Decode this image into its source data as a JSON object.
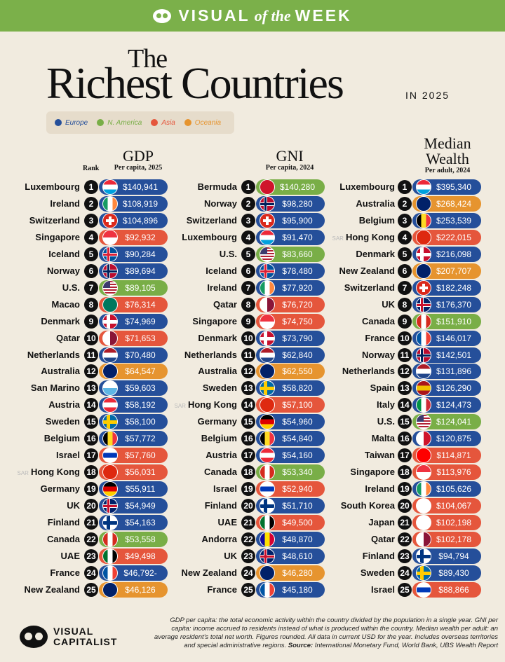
{
  "banner": {
    "pre": "VISUAL",
    "mid": "of the",
    "post": "WEEK"
  },
  "title": {
    "line1": "The",
    "line2": "Richest Countries",
    "year": "IN 2025"
  },
  "colors": {
    "Europe": "#254f9a",
    "N. America": "#79ae47",
    "Asia": "#e5563c",
    "Oceania": "#e6942f"
  },
  "legend": [
    {
      "label": "Europe",
      "region": "Europe"
    },
    {
      "label": "N. America",
      "region": "N. America"
    },
    {
      "label": "Asia",
      "region": "Asia"
    },
    {
      "label": "Oceania",
      "region": "Oceania"
    }
  ],
  "columns": [
    {
      "title": "GDP",
      "subtitle": "Per capita, 2025",
      "rank_label": "Rank",
      "rows": [
        [
          "Luxembourg",
          "$140,941",
          "Europe",
          "lu"
        ],
        [
          "Ireland",
          "$108,919",
          "Europe",
          "ie"
        ],
        [
          "Switzerland",
          "$104,896",
          "Europe",
          "ch"
        ],
        [
          "Singapore",
          "$92,932",
          "Asia",
          "sg"
        ],
        [
          "Iceland",
          "$90,284",
          "Europe",
          "is"
        ],
        [
          "Norway",
          "$89,694",
          "Europe",
          "no"
        ],
        [
          "U.S.",
          "$89,105",
          "N. America",
          "us"
        ],
        [
          "Macao",
          "$76,314",
          "Asia",
          "mo"
        ],
        [
          "Denmark",
          "$74,969",
          "Europe",
          "dk"
        ],
        [
          "Qatar",
          "$71,653",
          "Asia",
          "qa"
        ],
        [
          "Netherlands",
          "$70,480",
          "Europe",
          "nl"
        ],
        [
          "Australia",
          "$64,547",
          "Oceania",
          "au"
        ],
        [
          "San Marino",
          "$59,603",
          "Europe",
          "sm"
        ],
        [
          "Austria",
          "$58,192",
          "Europe",
          "at"
        ],
        [
          "Sweden",
          "$58,100",
          "Europe",
          "se"
        ],
        [
          "Belgium",
          "$57,772",
          "Europe",
          "be"
        ],
        [
          "Israel",
          "$57,760",
          "Asia",
          "il"
        ],
        [
          "Hong Kong",
          "$56,031",
          "Asia",
          "hk"
        ],
        [
          "Germany",
          "$55,911",
          "Europe",
          "de"
        ],
        [
          "UK",
          "$54,949",
          "Europe",
          "uk"
        ],
        [
          "Finland",
          "$54,163",
          "Europe",
          "fi"
        ],
        [
          "Canada",
          "$53,558",
          "N. America",
          "ca"
        ],
        [
          "UAE",
          "$49,498",
          "Asia",
          "ae"
        ],
        [
          "France",
          "$46,792-",
          "Europe",
          "fr"
        ],
        [
          "New Zealand",
          "$46,126",
          "Oceania",
          "nz"
        ]
      ]
    },
    {
      "title": "GNI",
      "subtitle": "Per capita, 2024",
      "rows": [
        [
          "Bermuda",
          "$140,280",
          "N. America",
          "bm"
        ],
        [
          "Norway",
          "$98,280",
          "Europe",
          "no"
        ],
        [
          "Switzerland",
          "$95,900",
          "Europe",
          "ch"
        ],
        [
          "Luxembourg",
          "$91,470",
          "Europe",
          "lu"
        ],
        [
          "U.S.",
          "$83,660",
          "N. America",
          "us"
        ],
        [
          "Iceland",
          "$78,480",
          "Europe",
          "is"
        ],
        [
          "Ireland",
          "$77,920",
          "Europe",
          "ie"
        ],
        [
          "Qatar",
          "$76,720",
          "Asia",
          "qa"
        ],
        [
          "Singapore",
          "$74,750",
          "Asia",
          "sg"
        ],
        [
          "Denmark",
          "$73,790",
          "Europe",
          "dk"
        ],
        [
          "Netherlands",
          "$62,840",
          "Europe",
          "nl"
        ],
        [
          "Australia",
          "$62,550",
          "Oceania",
          "au"
        ],
        [
          "Sweden",
          "$58,820",
          "Europe",
          "se"
        ],
        [
          "Hong Kong",
          "$57,100",
          "Asia",
          "hk"
        ],
        [
          "Germany",
          "$54,960",
          "Europe",
          "de"
        ],
        [
          "Belgium",
          "$54,840",
          "Europe",
          "be"
        ],
        [
          "Austria",
          "$54,160",
          "Europe",
          "at"
        ],
        [
          "Canada",
          "$53,340",
          "N. America",
          "ca"
        ],
        [
          "Israel",
          "$52,940",
          "Asia",
          "il"
        ],
        [
          "Finland",
          "$51,710",
          "Europe",
          "fi"
        ],
        [
          "UAE",
          "$49,500",
          "Asia",
          "ae"
        ],
        [
          "Andorra",
          "$48,870",
          "Europe",
          "ad"
        ],
        [
          "UK",
          "$48,610",
          "Europe",
          "uk"
        ],
        [
          "New Zealand",
          "$46,280",
          "Oceania",
          "nz"
        ],
        [
          "France",
          "$45,180",
          "Europe",
          "fr"
        ]
      ]
    },
    {
      "title": "Median",
      "title2": "Wealth",
      "subtitle": "Per adult, 2024",
      "rows": [
        [
          "Luxembourg",
          "$395,340",
          "Europe",
          "lu"
        ],
        [
          "Australia",
          "$268,424",
          "Oceania",
          "au"
        ],
        [
          "Belgium",
          "$253,539",
          "Europe",
          "be"
        ],
        [
          "Hong Kong",
          "$222,015",
          "Asia",
          "hk"
        ],
        [
          "Denmark",
          "$216,098",
          "Europe",
          "dk"
        ],
        [
          "New Zealand",
          "$207,707",
          "Oceania",
          "nz"
        ],
        [
          "Switzerland",
          "$182,248",
          "Europe",
          "ch"
        ],
        [
          "UK",
          "$176,370",
          "Europe",
          "uk"
        ],
        [
          "Canada",
          "$151,910",
          "N. America",
          "ca"
        ],
        [
          "France",
          "$146,017",
          "Europe",
          "fr"
        ],
        [
          "Norway",
          "$142,501",
          "Europe",
          "no"
        ],
        [
          "Netherlands",
          "$131,896",
          "Europe",
          "nl"
        ],
        [
          "Spain",
          "$126,290",
          "Europe",
          "es"
        ],
        [
          "Italy",
          "$124,473",
          "Europe",
          "it"
        ],
        [
          "U.S.",
          "$124,041",
          "N. America",
          "us"
        ],
        [
          "Malta",
          "$120,875",
          "Europe",
          "mt"
        ],
        [
          "Taiwan",
          "$114,871",
          "Asia",
          "tw"
        ],
        [
          "Singapore",
          "$113,976",
          "Asia",
          "sg"
        ],
        [
          "Ireland",
          "$105,626",
          "Europe",
          "ie"
        ],
        [
          "South Korea",
          "$104,067",
          "Asia",
          "kr"
        ],
        [
          "Japan",
          "$102,198",
          "Asia",
          "jp"
        ],
        [
          "Qatar",
          "$102,178",
          "Asia",
          "qa"
        ],
        [
          "Finland",
          "$94,794",
          "Europe",
          "fi"
        ],
        [
          "Sweden",
          "$89,430",
          "Europe",
          "se"
        ],
        [
          "Israel",
          "$88,866",
          "Asia",
          "il"
        ]
      ]
    }
  ],
  "sar_label": "SAR",
  "footer": {
    "brand1": "VISUAL",
    "brand2": "CAPITALIST",
    "note": "GDP per capita: the total economic activity within the country divided by the population in a single year. GNI per capita: income accrued to residents instead of what is produced within the country. Median wealth per adult: an average resident's total net worth. Figures rounded. All data in current USD for the year. Includes overseas territories and special administrative regions.",
    "source_label": "Source:",
    "source": "International Monetary Fund, World Bank, UBS Wealth Report"
  }
}
